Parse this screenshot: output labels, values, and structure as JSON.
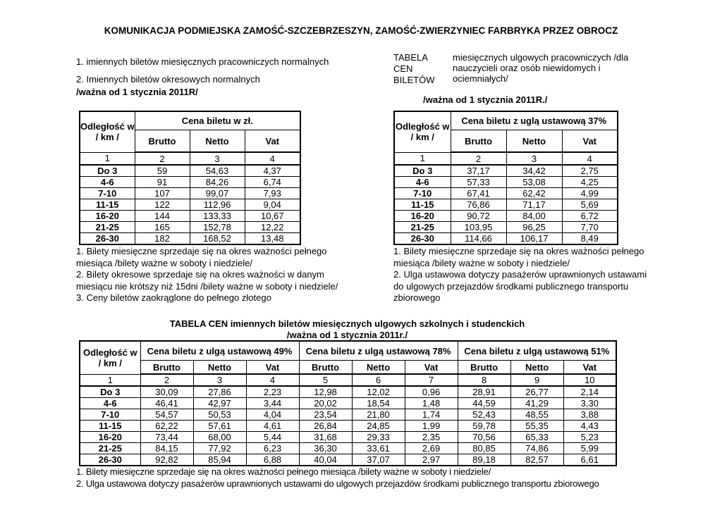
{
  "doc_title": "KOMUNIKACJA PODMIEJSKA ZAMOŚĆ-SZCZEBRZESZYN, ZAMOŚĆ-ZWIERZYNIEC FARBRYKA PRZEZ OBROCZ",
  "left_section": {
    "para1": "1. imiennych biletów miesięcznych pracowniczych normalnych",
    "para2": "2. Imiennych biletów okresowych normalnych",
    "valid_from": "/ważna od 1 stycznia  2011R/",
    "table": {
      "col1_header_line1": "Odległość w",
      "col1_header_line2": "/ km /",
      "group_header": "Cena biletu w zł.",
      "sub_headers": [
        "Brutto",
        "Netto",
        "Vat"
      ],
      "col_numbers": [
        "1",
        "2",
        "3",
        "4"
      ],
      "rows": [
        [
          "Do 3",
          "59",
          "54,63",
          "4,37"
        ],
        [
          "4-6",
          "91",
          "84,26",
          "6,74"
        ],
        [
          "7-10",
          "107",
          "99,07",
          "7,93"
        ],
        [
          "11-15",
          "122",
          "112,96",
          "9,04"
        ],
        [
          "16-20",
          "144",
          "133,33",
          "10,67"
        ],
        [
          "21-25",
          "165",
          "152,78",
          "12,22"
        ],
        [
          "26-30",
          "182",
          "168,52",
          "13,48"
        ]
      ]
    },
    "notes": [
      "1. Bilety miesięczne sprzedaje się na okres ważności pełnego miesiąca /bilety ważne w soboty i niedziele/",
      "2. Bilety okresowe sprzedaje się na okres ważności w danym miesiącu nie krótszy niż 15dni /bilety ważne w soboty i niedziele/",
      "3. Ceny biletów zaokrąglone do pełnego złotego"
    ]
  },
  "right_section": {
    "label_line1": "TABELA",
    "label_line2": "CEN",
    "label_line3": "BILETÓW",
    "desc": "miesięcznych ulgowych pracowniczych /dla nauczycieli oraz osób niewidomych i ociemniałych/",
    "valid_from": "/ważna od 1 stycznia  2011R./",
    "table": {
      "col1_header_line1": "Odległość w",
      "col1_header_line2": "/ km /",
      "group_header": "Cena biletu z uglą ustawową 37%",
      "sub_headers": [
        "Brutto",
        "Netto",
        "Vat"
      ],
      "col_numbers": [
        "1",
        "2",
        "3",
        "4"
      ],
      "rows": [
        [
          "Do 3",
          "37,17",
          "34,42",
          "2,75"
        ],
        [
          "4-6",
          "57,33",
          "53,08",
          "4,25"
        ],
        [
          "7-10",
          "67,41",
          "62,42",
          "4,99"
        ],
        [
          "11-15",
          "76,86",
          "71,17",
          "5,69"
        ],
        [
          "16-20",
          "90,72",
          "84,00",
          "6,72"
        ],
        [
          "21-25",
          "103,95",
          "96,25",
          "7,70"
        ],
        [
          "26-30",
          "114,66",
          "106,17",
          "8,49"
        ]
      ]
    },
    "notes": [
      "1. Bilety miesięczne sprzedaje się na okres ważności pełnego miesiąca /bilety ważne w soboty i niedziele/",
      "2. Ulga ustawowa dotyczy pasażerów uprawnionych ustawami do ulgowych przejazdów środkami publicznego transportu zbiorowego"
    ]
  },
  "bottom_section": {
    "title": "TABELA CEN imiennych biletów miesięcznych ulgowych szkolnych i studenckich",
    "valid_from": "/ważna od 1 stycznia 2011r./",
    "table": {
      "col1_header_line1": "Odległość w",
      "col1_header_line2": "/ km /",
      "group_headers": [
        "Cena biletu z ulgą ustawową 49%",
        "Cena biletu z ulgą ustawową 78%",
        "Cena biletu z ulgą ustawową 51%"
      ],
      "sub_headers": [
        "Brutto",
        "Netto",
        "Vat",
        "Brutto",
        "Netto",
        "Vat",
        "Brutto",
        "Netto",
        "Vat"
      ],
      "col_numbers": [
        "1",
        "2",
        "3",
        "4",
        "5",
        "6",
        "7",
        "8",
        "9",
        "10"
      ],
      "rows": [
        [
          "Do 3",
          "30,09",
          "27,86",
          "2,23",
          "12,98",
          "12,02",
          "0,96",
          "28,91",
          "26,77",
          "2,14"
        ],
        [
          "4-6",
          "46,41",
          "42,97",
          "3,44",
          "20,02",
          "18,54",
          "1,48",
          "44,59",
          "41,29",
          "3,30"
        ],
        [
          "7-10",
          "54,57",
          "50,53",
          "4,04",
          "23,54",
          "21,80",
          "1,74",
          "52,43",
          "48,55",
          "3,88"
        ],
        [
          "11-15",
          "62,22",
          "57,61",
          "4,61",
          "26,84",
          "24,85",
          "1,99",
          "59,78",
          "55,35",
          "4,43"
        ],
        [
          "16-20",
          "73,44",
          "68,00",
          "5,44",
          "31,68",
          "29,33",
          "2,35",
          "70,56",
          "65,33",
          "5,23"
        ],
        [
          "21-25",
          "84,15",
          "77,92",
          "6,23",
          "36,30",
          "33,61",
          "2,69",
          "80,85",
          "74,86",
          "5,99"
        ],
        [
          "26-30",
          "92,82",
          "85,94",
          "6,88",
          "40,04",
          "37,07",
          "2,97",
          "89,18",
          "82,57",
          "6,61"
        ]
      ]
    },
    "notes": [
      "1. Bilety miesięczne sprzedaje się na okres ważności pełnego miesiąca /bilety ważne w soboty i niedziele/",
      "2. Ulga ustawowa dotyczy pasażerów uprawnionych ustawami do ulgowych przejazdów środkami publicznego transportu zbiorowego"
    ]
  }
}
